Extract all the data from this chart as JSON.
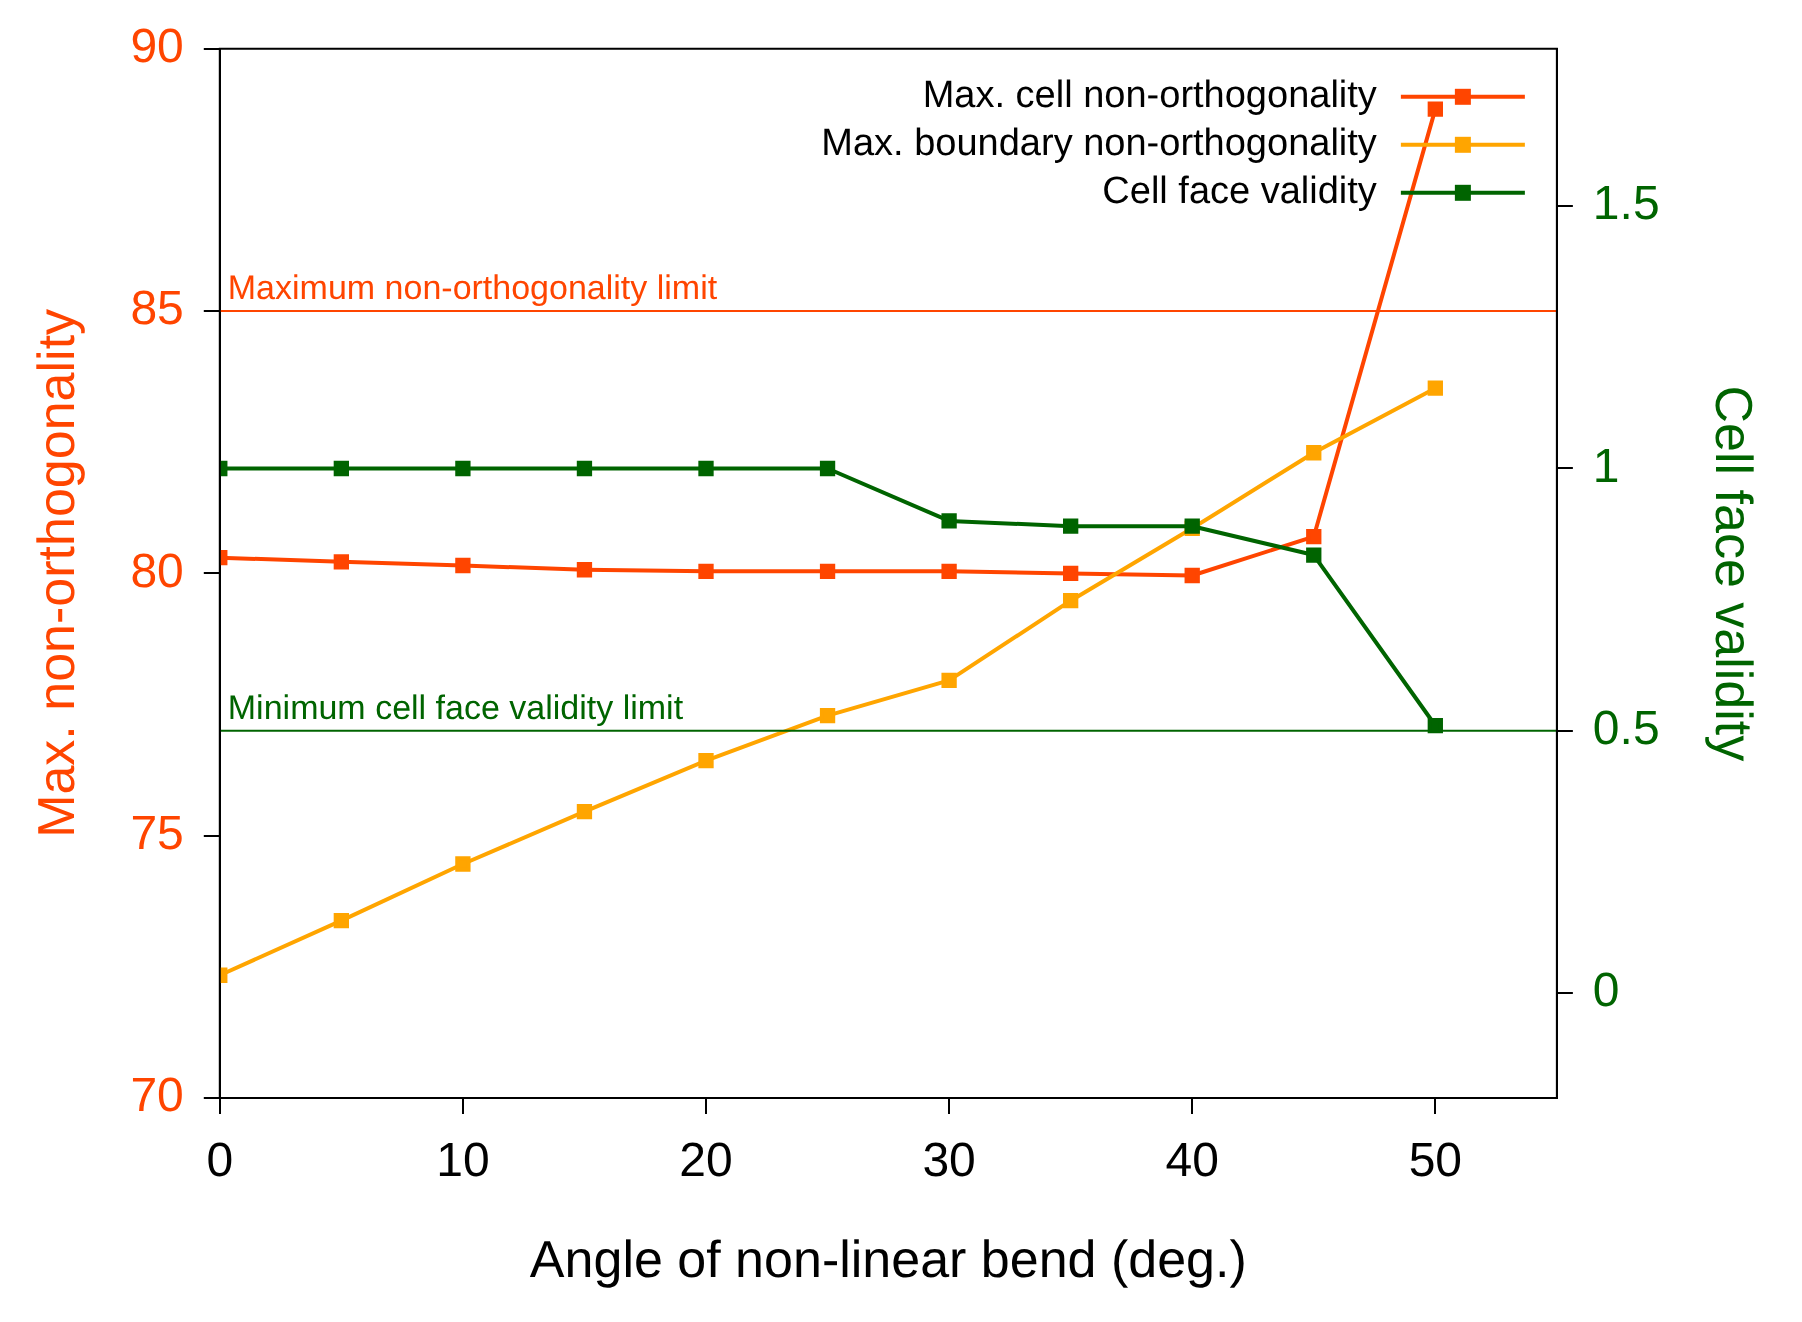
{
  "chart_data": {
    "type": "line",
    "xlabel": "Angle of non-linear bend (deg.)",
    "ylabel": "Max. non-orthogonality",
    "y2label": "Cell face validity",
    "x": [
      0,
      5,
      10,
      15,
      20,
      25,
      30,
      35,
      40,
      45,
      50
    ],
    "series": [
      {
        "name": "Max. cell non-orthogonality",
        "color": "#ff4500",
        "values": [
          80.3,
          80.22,
          80.15,
          80.07,
          80.04,
          80.04,
          80.04,
          80.0,
          79.96,
          80.7,
          88.85
        ]
      },
      {
        "name": "Max. boundary non-orthogonality",
        "color": "#ffa500",
        "values": [
          72.34,
          73.38,
          74.46,
          75.46,
          76.43,
          77.29,
          77.96,
          79.48,
          80.86,
          82.3,
          83.53
        ]
      },
      {
        "name": "Cell face validity",
        "color": "#006400",
        "axis": "y2",
        "values": [
          1.0,
          1.0,
          1.0,
          1.0,
          1.0,
          1.0,
          0.9,
          0.89,
          0.89,
          0.835,
          0.51
        ]
      }
    ],
    "xlim": [
      0,
      55
    ],
    "xticks": [
      0,
      10,
      20,
      30,
      40,
      50
    ],
    "ylim": [
      70,
      90
    ],
    "yticks": [
      70,
      75,
      80,
      85,
      90
    ],
    "y2lim": [
      -0.2,
      1.8
    ],
    "y2ticks": [
      0,
      0.5,
      1,
      1.5
    ],
    "ref_lines": [
      {
        "axis": "y",
        "value": 85,
        "label": "Maximum non-orthogonality limit",
        "color": "#ff4500"
      },
      {
        "axis": "y2",
        "value": 0.5,
        "label": "Minimum cell face validity limit",
        "color": "#006400"
      }
    ],
    "legend": "top right",
    "marker": "square",
    "line_style": "solid",
    "grid": false
  }
}
